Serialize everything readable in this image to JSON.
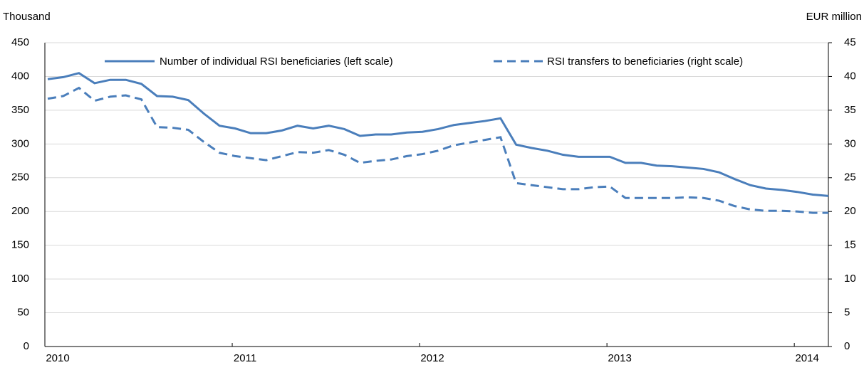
{
  "chart_data": {
    "type": "line",
    "y_label": "Thousand",
    "y2_label": "EUR million",
    "categories": [
      "2010",
      null,
      null,
      null,
      null,
      null,
      null,
      null,
      null,
      null,
      null,
      null,
      "2011",
      null,
      null,
      null,
      null,
      null,
      null,
      null,
      null,
      null,
      null,
      null,
      "2012",
      null,
      null,
      null,
      null,
      null,
      null,
      null,
      null,
      null,
      null,
      null,
      "2013",
      null,
      null,
      null,
      null,
      null,
      null,
      null,
      null,
      null,
      null,
      null,
      "2014",
      null,
      null
    ],
    "series": [
      {
        "name": "Number of individual RSI beneficiaries (left scale)",
        "color": "#4a7ebb",
        "dash": false,
        "values": [
          396,
          399,
          405,
          390,
          395,
          395,
          389,
          371,
          370,
          365,
          345,
          327,
          323,
          316,
          316,
          320,
          327,
          323,
          327,
          322,
          312,
          314,
          314,
          317,
          318,
          322,
          328,
          331,
          334,
          338,
          299,
          294,
          290,
          284,
          281,
          281,
          281,
          272,
          272,
          268,
          267,
          265,
          263,
          258,
          248,
          239,
          234,
          232,
          229,
          225,
          223
        ]
      },
      {
        "name": "RSI transfers to beneficiaries (right scale)",
        "color": "#4a7ebb",
        "dash": true,
        "axis": "y2",
        "values": [
          36.7,
          37.1,
          38.3,
          36.4,
          37.0,
          37.2,
          36.6,
          32.5,
          32.4,
          32.1,
          30.3,
          28.7,
          28.2,
          27.9,
          27.6,
          28.2,
          28.8,
          28.7,
          29.1,
          28.4,
          27.2,
          27.5,
          27.7,
          28.2,
          28.5,
          29.0,
          29.8,
          30.2,
          30.6,
          31.0,
          24.2,
          23.9,
          23.6,
          23.3,
          23.3,
          23.6,
          23.7,
          22.0,
          22.0,
          22.0,
          22.0,
          22.1,
          22.0,
          21.6,
          20.8,
          20.3,
          20.1,
          20.1,
          20.0,
          19.8,
          19.8
        ]
      }
    ],
    "ylim": [
      0,
      450
    ],
    "yticks": [
      0,
      50,
      100,
      150,
      200,
      250,
      300,
      350,
      400,
      450
    ],
    "y2lim": [
      0,
      45
    ],
    "y2ticks": [
      0,
      5,
      10,
      15,
      20,
      25,
      30,
      35,
      40,
      45
    ],
    "grid": true
  }
}
